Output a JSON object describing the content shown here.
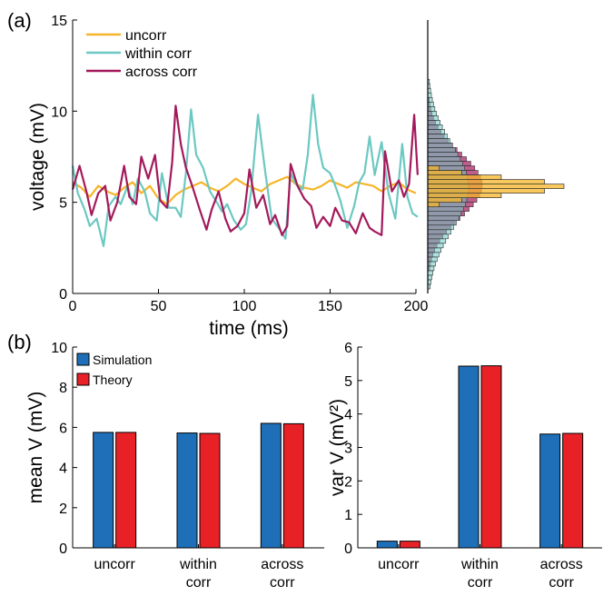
{
  "panel_labels": {
    "a": "(a)",
    "b": "(b)"
  },
  "colors": {
    "uncorr": "#f5b52a",
    "within": "#6cc8c2",
    "across": "#a3195b",
    "simulation": "#1f6fb8",
    "theory": "#e82127"
  },
  "chart_data": [
    {
      "type": "line",
      "xlabel": "time (ms)",
      "ylabel": "voltage (mV)",
      "xlim": [
        0,
        200
      ],
      "ylim": [
        0,
        15
      ],
      "xticks": [
        "0",
        "50",
        "100",
        "150",
        "200"
      ],
      "yticks": [
        "0",
        "5",
        "10",
        "15"
      ],
      "legend_position": "top-left",
      "series": [
        {
          "name": "uncorr",
          "key": "uncorr",
          "x": [
            0,
            5,
            10,
            15,
            20,
            25,
            30,
            35,
            40,
            45,
            50,
            55,
            60,
            65,
            70,
            75,
            80,
            85,
            90,
            95,
            100,
            105,
            110,
            115,
            120,
            125,
            130,
            135,
            140,
            145,
            150,
            155,
            160,
            165,
            170,
            175,
            180,
            185,
            190,
            195,
            200
          ],
          "y": [
            6.1,
            5.8,
            5.3,
            5.9,
            5.6,
            5.4,
            5.8,
            6.1,
            5.5,
            5.9,
            5.2,
            4.9,
            5.4,
            5.7,
            5.9,
            6.1,
            5.8,
            5.6,
            5.9,
            6.3,
            6.0,
            5.8,
            5.6,
            6.0,
            6.2,
            6.4,
            6.0,
            5.8,
            5.7,
            5.9,
            6.2,
            6.0,
            5.8,
            6.1,
            6.0,
            5.9,
            5.6,
            5.9,
            6.1,
            5.7,
            5.5
          ]
        },
        {
          "name": "within corr",
          "key": "within",
          "x": [
            0,
            3,
            7,
            10,
            14,
            18,
            21,
            25,
            28,
            32,
            35,
            38,
            42,
            45,
            49,
            52,
            56,
            60,
            63,
            66,
            69,
            72,
            76,
            80,
            84,
            87,
            90,
            94,
            98,
            101,
            104,
            108,
            112,
            116,
            120,
            124,
            127,
            130,
            134,
            137,
            140,
            143,
            146,
            150,
            153,
            156,
            160,
            164,
            167,
            170,
            173,
            176,
            180,
            184,
            188,
            192,
            195,
            198,
            201
          ],
          "y": [
            7.0,
            5.5,
            4.6,
            3.7,
            4.1,
            2.6,
            4.8,
            5.3,
            4.9,
            5.9,
            4.9,
            6.3,
            5.6,
            4.4,
            4.0,
            6.6,
            4.7,
            4.7,
            4.2,
            6.6,
            10.1,
            7.6,
            6.9,
            5.6,
            5.0,
            4.5,
            4.9,
            4.0,
            3.5,
            3.8,
            5.6,
            9.8,
            6.8,
            4.1,
            3.6,
            3.0,
            6.6,
            6.0,
            5.7,
            7.6,
            10.9,
            8.2,
            6.9,
            6.6,
            5.9,
            5.1,
            3.6,
            4.8,
            6.1,
            6.6,
            8.6,
            6.5,
            8.3,
            5.5,
            4.1,
            8.2,
            5.3,
            4.4,
            4.2
          ]
        },
        {
          "name": "across corr",
          "key": "across",
          "x": [
            0,
            4,
            8,
            11,
            15,
            19,
            22,
            26,
            30,
            33,
            37,
            40,
            44,
            48,
            51,
            55,
            58,
            60,
            63,
            66,
            70,
            74,
            78,
            81,
            85,
            89,
            92,
            96,
            100,
            103,
            107,
            111,
            115,
            118,
            122,
            125,
            127,
            131,
            135,
            139,
            142,
            146,
            150,
            153,
            157,
            161,
            165,
            169,
            173,
            176,
            180,
            182,
            186,
            190,
            193,
            196,
            199,
            202
          ],
          "y": [
            5.7,
            7.0,
            5.6,
            4.3,
            5.5,
            5.9,
            4.0,
            5.0,
            7.0,
            5.3,
            4.9,
            7.5,
            6.3,
            7.6,
            5.1,
            4.7,
            7.2,
            10.3,
            8.2,
            6.9,
            5.8,
            4.6,
            3.5,
            4.6,
            5.6,
            4.1,
            3.4,
            3.7,
            4.4,
            6.8,
            4.7,
            5.4,
            3.8,
            4.3,
            3.2,
            3.7,
            7.1,
            5.9,
            5.2,
            4.8,
            3.6,
            4.2,
            3.7,
            4.7,
            4.0,
            3.9,
            3.3,
            4.4,
            3.6,
            3.4,
            3.2,
            7.8,
            5.6,
            6.2,
            5.3,
            6.0,
            9.8,
            6.5
          ]
        }
      ]
    },
    {
      "type": "bar",
      "ylabel": "mean V (mV)",
      "categories": [
        [
          "uncorr"
        ],
        [
          "within",
          "corr"
        ],
        [
          "across",
          "corr"
        ]
      ],
      "ylim": [
        0,
        10
      ],
      "yticks": [
        "0",
        "2",
        "4",
        "6",
        "8",
        "10"
      ],
      "legend_position": "top-left",
      "series": [
        {
          "name": "Simulation",
          "key": "simulation",
          "values": [
            5.75,
            5.72,
            6.2
          ]
        },
        {
          "name": "Theory",
          "key": "theory",
          "values": [
            5.75,
            5.7,
            6.18
          ]
        }
      ]
    },
    {
      "type": "bar",
      "ylabel": "var V (mV²)",
      "categories": [
        [
          "uncorr"
        ],
        [
          "within",
          "corr"
        ],
        [
          "across",
          "corr"
        ]
      ],
      "ylim": [
        0,
        6
      ],
      "yticks": [
        "0",
        "1",
        "2",
        "3",
        "4",
        "5",
        "6"
      ],
      "series": [
        {
          "name": "Simulation",
          "key": "simulation",
          "values": [
            0.2,
            5.43,
            3.4
          ]
        },
        {
          "name": "Theory",
          "key": "theory",
          "values": [
            0.2,
            5.44,
            3.42
          ]
        }
      ]
    }
  ]
}
